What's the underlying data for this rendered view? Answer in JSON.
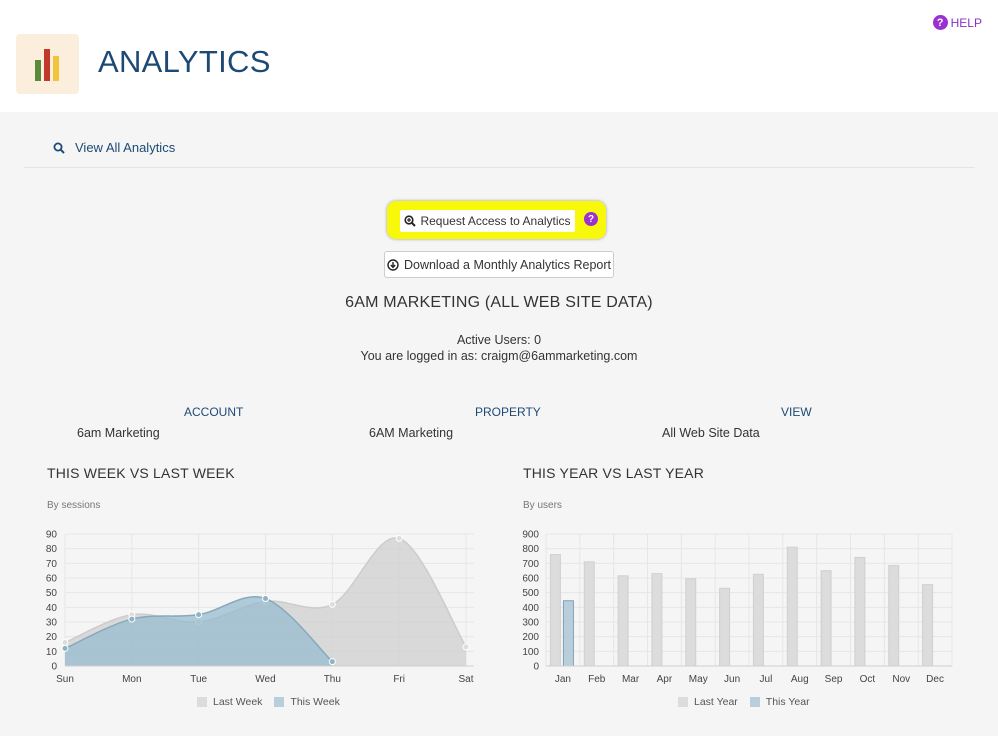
{
  "header": {
    "title": "ANALYTICS",
    "help_label": "HELP"
  },
  "nav": {
    "view_all_label": "View All Analytics"
  },
  "actions": {
    "request_access_label": "Request Access to Analytics",
    "download_report_label": "Download a Monthly Analytics Report"
  },
  "info": {
    "company": "6AM MARKETING (ALL WEB SITE DATA)",
    "active_users": "Active Users: 0",
    "logged_in": "You are logged in as: craigm@6ammarketing.com"
  },
  "table": {
    "account_header": "ACCOUNT",
    "account_value": "6am Marketing",
    "property_header": "PROPERTY",
    "property_value": "6AM Marketing",
    "view_header": "VIEW",
    "view_value": "All Web Site Data"
  },
  "charts": {
    "weekly": {
      "title": "THIS WEEK VS LAST WEEK",
      "subtitle": "By sessions"
    },
    "yearly": {
      "title": "THIS YEAR VS LAST YEAR",
      "subtitle": "By users"
    }
  },
  "colors": {
    "accent": "#1d4a74",
    "highlight": "#f8f80a",
    "help": "#9a31d0",
    "this_series": "#9ab8c9",
    "last_series": "#dcdcdc"
  },
  "chart_data": [
    {
      "type": "area",
      "title": "THIS WEEK VS LAST WEEK",
      "subtitle": "By sessions",
      "categories": [
        "Sun",
        "Mon",
        "Tue",
        "Wed",
        "Thu",
        "Fri",
        "Sat"
      ],
      "ylim": [
        0,
        90
      ],
      "yticks": [
        0,
        10,
        20,
        30,
        40,
        50,
        60,
        70,
        80,
        90
      ],
      "series": [
        {
          "name": "Last Week",
          "values": [
            16,
            35,
            30,
            44,
            42,
            87,
            13
          ]
        },
        {
          "name": "This Week",
          "values": [
            12,
            32,
            35,
            46,
            3,
            null,
            null
          ]
        }
      ],
      "grid": true,
      "legend": "bottom"
    },
    {
      "type": "bar",
      "title": "THIS YEAR VS LAST YEAR",
      "subtitle": "By users",
      "categories": [
        "Jan",
        "Feb",
        "Mar",
        "Apr",
        "May",
        "Jun",
        "Jul",
        "Aug",
        "Sep",
        "Oct",
        "Nov",
        "Dec"
      ],
      "ylim": [
        0,
        900
      ],
      "yticks": [
        0,
        100,
        200,
        300,
        400,
        500,
        600,
        700,
        800,
        900
      ],
      "series": [
        {
          "name": "Last Year",
          "values": [
            760,
            710,
            615,
            630,
            595,
            530,
            625,
            810,
            650,
            740,
            685,
            555
          ]
        },
        {
          "name": "This Year",
          "values": [
            445,
            null,
            null,
            null,
            null,
            null,
            null,
            null,
            null,
            null,
            null,
            null
          ]
        }
      ],
      "grid": true,
      "legend": "bottom"
    }
  ]
}
